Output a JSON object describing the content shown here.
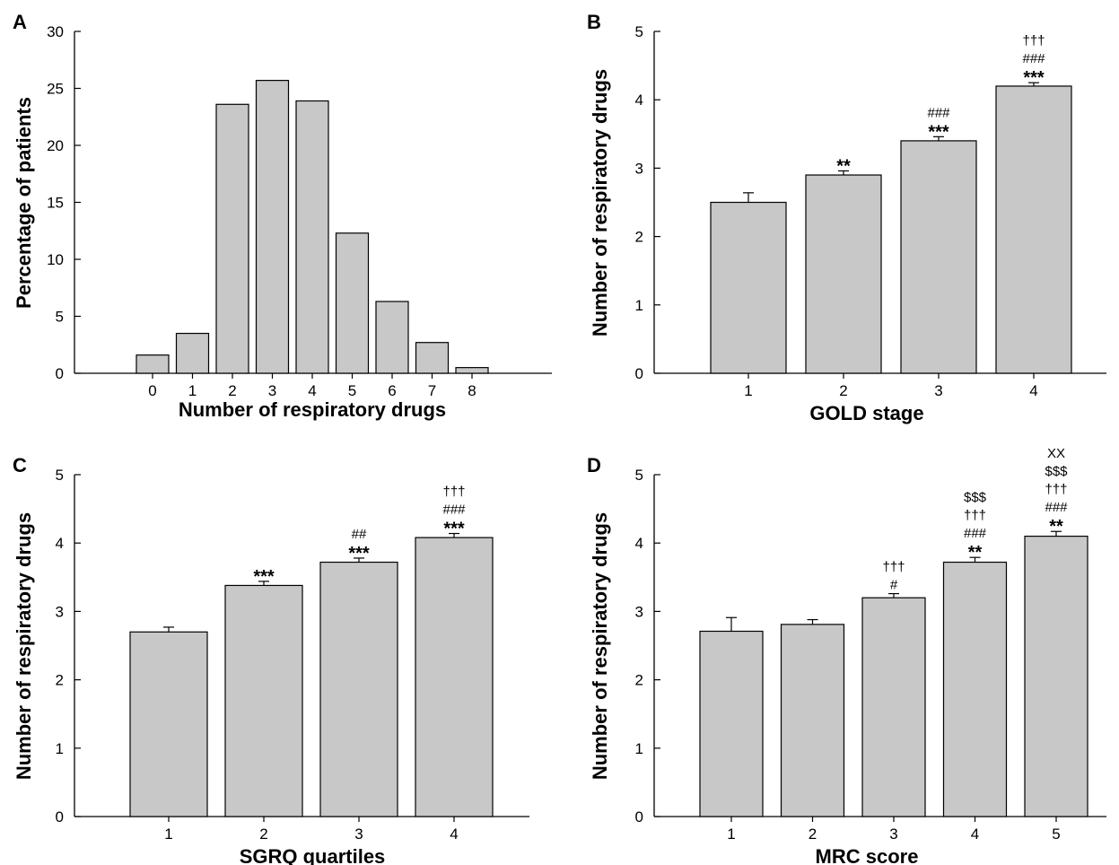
{
  "colors": {
    "bar_fill": "#c8c8c8",
    "bar_stroke": "#000000",
    "background": "#ffffff"
  },
  "chart_data": [
    {
      "id": "A",
      "type": "bar",
      "panel_label": "A",
      "xlabel": "Number of respiratory drugs",
      "ylabel": "Percentage of patients",
      "categories": [
        "0",
        "1",
        "2",
        "3",
        "4",
        "5",
        "6",
        "7",
        "8"
      ],
      "values": [
        1.6,
        3.5,
        23.6,
        25.7,
        23.9,
        12.3,
        6.3,
        2.7,
        0.5
      ],
      "errors": [],
      "annotations": [],
      "ylim": [
        0,
        30
      ],
      "yticks": [
        "0",
        "5",
        "10",
        "15",
        "20",
        "25",
        "30"
      ],
      "grid": false,
      "legend": "none"
    },
    {
      "id": "B",
      "type": "bar",
      "panel_label": "B",
      "xlabel": "GOLD stage",
      "ylabel": "Number of respiratory drugs",
      "categories": [
        "1",
        "2",
        "3",
        "4"
      ],
      "values": [
        2.5,
        2.9,
        3.4,
        4.2
      ],
      "errors": [
        0.14,
        0.06,
        0.06,
        0.05
      ],
      "annotations": [
        [],
        [
          "**"
        ],
        [
          "***",
          "###"
        ],
        [
          "***",
          "###",
          "†††"
        ]
      ],
      "ylim": [
        0,
        5
      ],
      "yticks": [
        "0",
        "1",
        "2",
        "3",
        "4",
        "5"
      ],
      "grid": false,
      "legend": "none"
    },
    {
      "id": "C",
      "type": "bar",
      "panel_label": "C",
      "xlabel": "SGRQ quartiles",
      "ylabel": "Number of respiratory drugs",
      "categories": [
        "1",
        "2",
        "3",
        "4"
      ],
      "values": [
        2.7,
        3.38,
        3.72,
        4.08
      ],
      "errors": [
        0.07,
        0.06,
        0.06,
        0.06
      ],
      "annotations": [
        [],
        [
          "***"
        ],
        [
          "***",
          "##"
        ],
        [
          "***",
          "###",
          "†††"
        ]
      ],
      "ylim": [
        0,
        5
      ],
      "yticks": [
        "0",
        "1",
        "2",
        "3",
        "4",
        "5"
      ],
      "grid": false,
      "legend": "none"
    },
    {
      "id": "D",
      "type": "bar",
      "panel_label": "D",
      "xlabel": "MRC score",
      "ylabel": "Number of respiratory drugs",
      "categories": [
        "1",
        "2",
        "3",
        "4",
        "5"
      ],
      "values": [
        2.71,
        2.81,
        3.2,
        3.72,
        4.1
      ],
      "errors": [
        0.2,
        0.07,
        0.06,
        0.07,
        0.07
      ],
      "annotations": [
        [],
        [],
        [
          "#",
          "†††"
        ],
        [
          "**",
          "###",
          "†††",
          "$$$"
        ],
        [
          "**",
          "###",
          "†††",
          "$$$",
          "XX"
        ]
      ],
      "ylim": [
        0,
        5
      ],
      "yticks": [
        "0",
        "1",
        "2",
        "3",
        "4",
        "5"
      ],
      "grid": false,
      "legend": "none"
    }
  ]
}
